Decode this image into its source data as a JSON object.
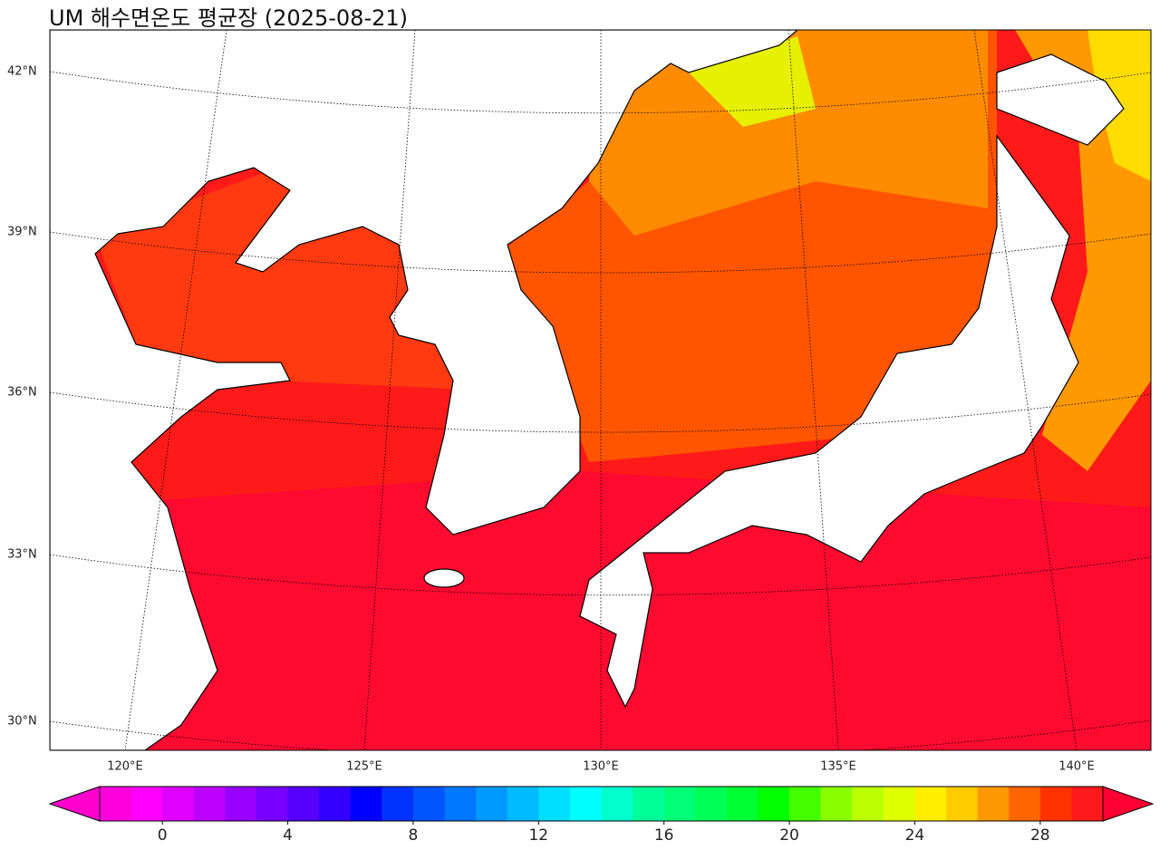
{
  "title": "UM 해수면온도 평균장 (2025-08-21)",
  "map": {
    "lat_labels": [
      "42°N",
      "39°N",
      "36°N",
      "33°N",
      "30°N"
    ],
    "lon_labels": [
      "120°E",
      "125°E",
      "130°E",
      "135°E",
      "140°E"
    ]
  },
  "colorbar": {
    "range": [
      -2,
      30
    ],
    "ticks": [
      0,
      4,
      8,
      12,
      16,
      20,
      24,
      28
    ],
    "under_color": "#ff00cc",
    "over_color": "#ff0033",
    "colors": [
      "#ff00dd",
      "#ff00ff",
      "#dd00ff",
      "#bb00ff",
      "#9900ff",
      "#7700ff",
      "#5500ff",
      "#3300ff",
      "#0000ff",
      "#0033ff",
      "#0055ff",
      "#0077ff",
      "#0099ff",
      "#00bbff",
      "#00ddff",
      "#00ffff",
      "#00ffcc",
      "#00ff99",
      "#00ff77",
      "#00ff55",
      "#00ff33",
      "#00ff00",
      "#44ff00",
      "#88ff00",
      "#bbff00",
      "#ddff00",
      "#ffee00",
      "#ffcc00",
      "#ff9900",
      "#ff6600",
      "#ff3300",
      "#ff1a1a"
    ]
  }
}
